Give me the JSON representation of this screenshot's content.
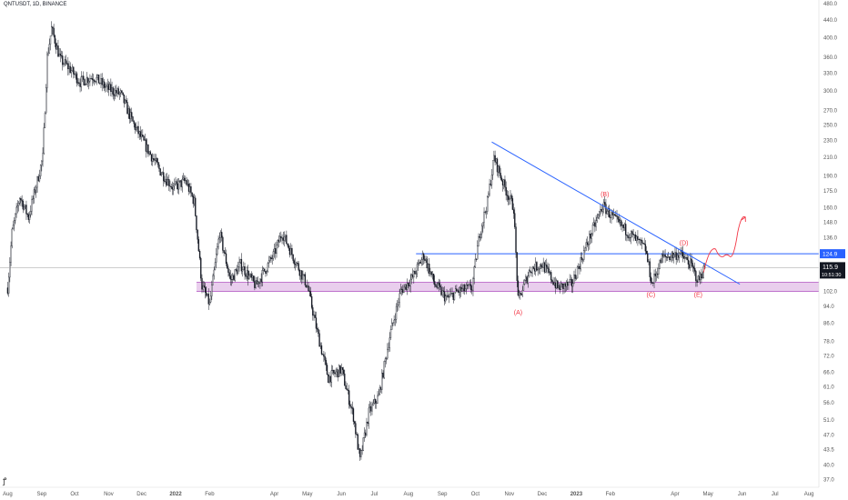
{
  "chart_title": "QNTUSDT, 1D, BINANCE",
  "colors": {
    "candle": "#131722",
    "trendline": "#2962ff",
    "resistance": "#2962ff",
    "support_zone_fill": "#e1bee7",
    "support_zone_border": "#9c27b0",
    "annotation": "#f23645",
    "price_badge": "#2962ff",
    "last_price_badge": "#131722"
  },
  "chart_data": {
    "type": "candlestick",
    "title": "QNTUSDT, 1D, BINANCE",
    "y_scale": "log",
    "ylim": [
      35.5,
      490
    ],
    "y_ticks": [
      480.0,
      440.0,
      400.0,
      360.0,
      330.0,
      300.0,
      270.0,
      250.0,
      230.0,
      210.0,
      190.0,
      175.0,
      160.0,
      148.0,
      136.0,
      124.0,
      112.0,
      102.0,
      94.0,
      86.0,
      78.0,
      72.0,
      66.0,
      61.0,
      56.0,
      51.0,
      47.0,
      43.5,
      40.0,
      37.0
    ],
    "x_ticks": [
      "Aug",
      "Sep",
      "Oct",
      "Nov",
      "Dec",
      "2022",
      "Feb",
      "Apr",
      "May",
      "Jun",
      "Jul",
      "Aug",
      "Sep",
      "Oct",
      "Nov",
      "Dec",
      "2023",
      "Feb",
      "Apr",
      "May",
      "Jun",
      "Jul",
      "Aug"
    ],
    "x_bold": [
      "2022",
      "2023"
    ],
    "price_path": [
      [
        "2021-08-01",
        104
      ],
      [
        "2021-08-05",
        140
      ],
      [
        "2021-08-12",
        170
      ],
      [
        "2021-08-20",
        152
      ],
      [
        "2021-08-28",
        185
      ],
      [
        "2021-09-02",
        210
      ],
      [
        "2021-09-06",
        360
      ],
      [
        "2021-09-10",
        420
      ],
      [
        "2021-09-18",
        355
      ],
      [
        "2021-09-26",
        340
      ],
      [
        "2021-10-06",
        315
      ],
      [
        "2021-10-18",
        325
      ],
      [
        "2021-10-30",
        305
      ],
      [
        "2021-11-12",
        295
      ],
      [
        "2021-11-24",
        250
      ],
      [
        "2021-12-06",
        220
      ],
      [
        "2021-12-18",
        195
      ],
      [
        "2021-12-30",
        178
      ],
      [
        "2022-01-10",
        185
      ],
      [
        "2022-01-18",
        165
      ],
      [
        "2022-01-25",
        105
      ],
      [
        "2022-02-01",
        95
      ],
      [
        "2022-02-10",
        140
      ],
      [
        "2022-02-20",
        108
      ],
      [
        "2022-03-01",
        118
      ],
      [
        "2022-03-15",
        105
      ],
      [
        "2022-04-01",
        125
      ],
      [
        "2022-04-08",
        140
      ],
      [
        "2022-04-20",
        120
      ],
      [
        "2022-05-01",
        105
      ],
      [
        "2022-05-10",
        82
      ],
      [
        "2022-05-20",
        64
      ],
      [
        "2022-06-01",
        67
      ],
      [
        "2022-06-12",
        52
      ],
      [
        "2022-06-18",
        41
      ],
      [
        "2022-06-26",
        53
      ],
      [
        "2022-07-05",
        58
      ],
      [
        "2022-07-15",
        80
      ],
      [
        "2022-07-25",
        102
      ],
      [
        "2022-08-05",
        110
      ],
      [
        "2022-08-15",
        124
      ],
      [
        "2022-08-25",
        106
      ],
      [
        "2022-09-05",
        98
      ],
      [
        "2022-09-15",
        102
      ],
      [
        "2022-09-28",
        104
      ],
      [
        "2022-10-05",
        140
      ],
      [
        "2022-10-12",
        165
      ],
      [
        "2022-10-18",
        210
      ],
      [
        "2022-10-28",
        178
      ],
      [
        "2022-11-05",
        160
      ],
      [
        "2022-11-09",
        97
      ],
      [
        "2022-11-20",
        115
      ],
      [
        "2022-12-01",
        118
      ],
      [
        "2022-12-15",
        104
      ],
      [
        "2022-12-28",
        106
      ],
      [
        "2023-01-10",
        130
      ],
      [
        "2023-01-25",
        162
      ],
      [
        "2023-02-05",
        150
      ],
      [
        "2023-02-20",
        138
      ],
      [
        "2023-03-05",
        128
      ],
      [
        "2023-03-11",
        106
      ],
      [
        "2023-03-20",
        122
      ],
      [
        "2023-04-05",
        125
      ],
      [
        "2023-04-15",
        118
      ],
      [
        "2023-04-22",
        108
      ],
      [
        "2023-04-28",
        115.9
      ]
    ],
    "trendline": {
      "from": [
        "2022-10-16",
        228
      ],
      "to": [
        "2023-05-30",
        106
      ]
    },
    "resistance_line": {
      "price": 124.9,
      "from": "2022-08-08"
    },
    "support_zone": {
      "low": 102,
      "high": 107,
      "from": "2022-01-20"
    },
    "last_price_line": 115.9,
    "wave_labels": [
      {
        "label": "(A)",
        "date": "2022-11-09",
        "price": 90
      },
      {
        "label": "(B)",
        "date": "2023-01-27",
        "price": 170
      },
      {
        "label": "(C)",
        "date": "2023-03-10",
        "price": 99
      },
      {
        "label": "(D)",
        "date": "2023-04-09",
        "price": 131
      },
      {
        "label": "(E)",
        "date": "2023-04-22",
        "price": 99
      }
    ],
    "projection_path": [
      [
        "2023-04-27",
        113
      ],
      [
        "2023-05-08",
        128
      ],
      [
        "2023-05-15",
        123
      ],
      [
        "2023-05-21",
        123
      ],
      [
        "2023-05-28",
        140
      ],
      [
        "2023-06-04",
        152
      ]
    ],
    "price_badges": {
      "resistance_label": "124.9",
      "last_price_label": "115.9",
      "countdown_label": "10:51:30"
    },
    "date_range": {
      "start": "2021-07-25",
      "end": "2023-08-10"
    }
  }
}
